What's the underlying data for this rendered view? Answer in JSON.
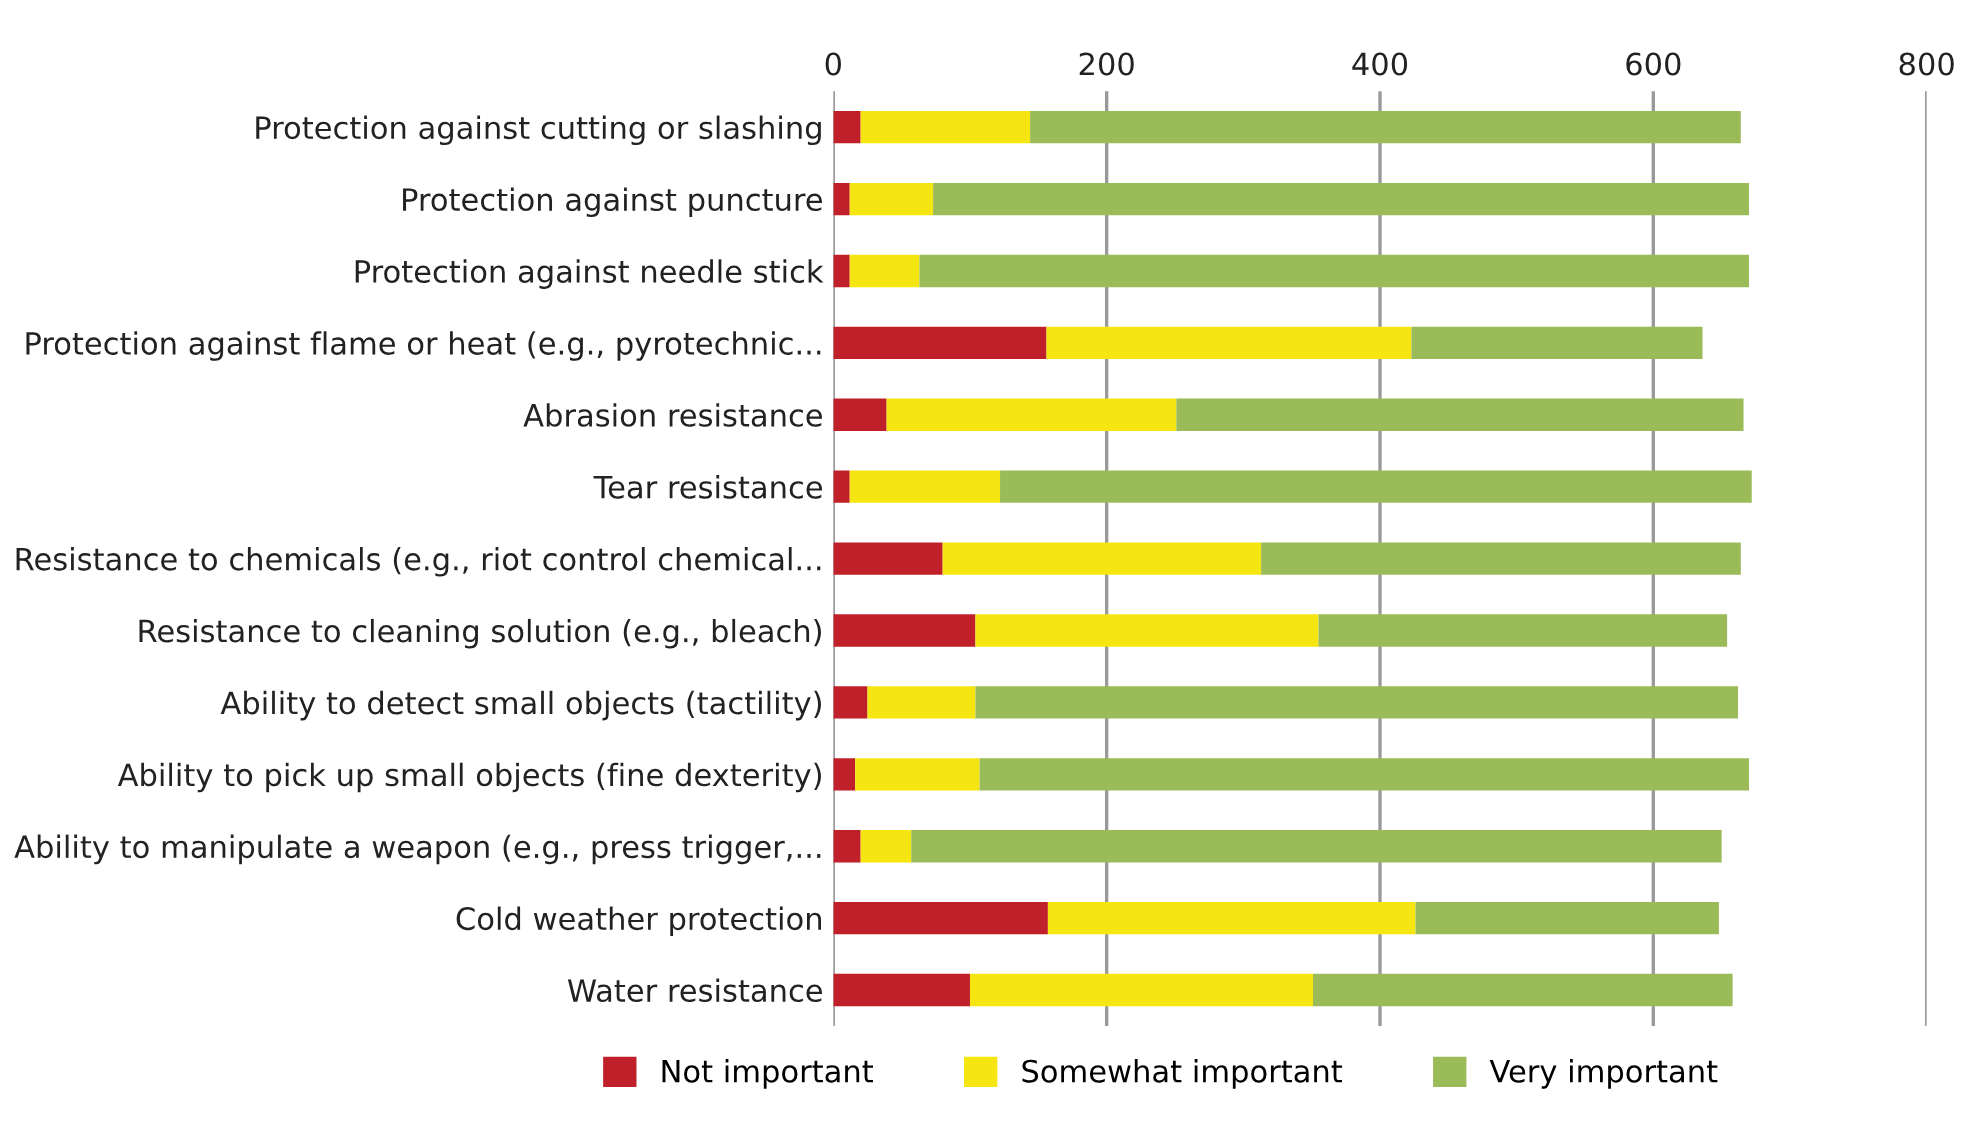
{
  "chart_data": {
    "type": "bar",
    "orientation": "horizontal",
    "stacked": true,
    "categories": [
      "Protection against cutting or slashing",
      "Protection against puncture",
      "Protection against needle stick",
      "Protection against flame or heat (e.g., pyrotechnic...",
      "Abrasion resistance",
      "Tear resistance",
      "Resistance to chemicals (e.g., riot control chemical...",
      "Resistance to cleaning solution (e.g., bleach)",
      "Ability to detect small objects (tactility)",
      "Ability to pick up small objects (fine dexterity)",
      "Ability to manipulate a weapon (e.g., press trigger,...",
      "Cold weather protection",
      "Water resistance"
    ],
    "series": [
      {
        "name": "Not important",
        "color": "#c0202a",
        "values": [
          20,
          12,
          12,
          156,
          39,
          12,
          80,
          104,
          25,
          16,
          20,
          157,
          100
        ]
      },
      {
        "name": "Somewhat important",
        "color": "#f5e612",
        "values": [
          124,
          61,
          51,
          267,
          212,
          110,
          233,
          251,
          79,
          91,
          37,
          269,
          251
        ]
      },
      {
        "name": "Very important",
        "color": "#9bbb59",
        "values": [
          520,
          597,
          607,
          213,
          415,
          550,
          351,
          299,
          558,
          563,
          593,
          222,
          307
        ]
      }
    ],
    "xlim": [
      0,
      800
    ],
    "xticks": [
      0,
      200,
      400,
      600,
      800
    ],
    "grid": "x",
    "legend": "bottom"
  }
}
